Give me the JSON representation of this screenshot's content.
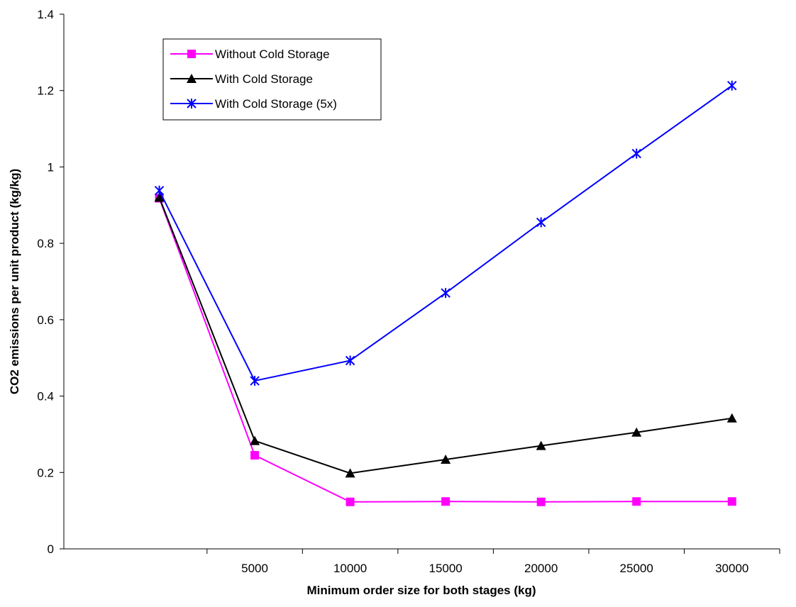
{
  "chart_data": {
    "type": "line",
    "xlabel": "Minimum order size for both stages (kg)",
    "ylabel": "CO2 emissions per unit product (kg/kg)",
    "categories": [
      "",
      "5000",
      "10000",
      "15000",
      "20000",
      "25000",
      "30000"
    ],
    "ylim": [
      0,
      1.4
    ],
    "yticks": [
      "0",
      "0.2",
      "0.4",
      "0.6",
      "0.8",
      "1",
      "1.2",
      "1.4"
    ],
    "grid": false,
    "legend_position": "top-left",
    "series": [
      {
        "name": "Without Cold Storage",
        "color": "#ff00ff",
        "marker": "square",
        "values": [
          0.918,
          0.245,
          0.123,
          0.124,
          0.123,
          0.124,
          0.124
        ]
      },
      {
        "name": "With Cold Storage",
        "color": "#000000",
        "marker": "triangle",
        "values": [
          0.92,
          0.283,
          0.198,
          0.234,
          0.27,
          0.305,
          0.342
        ]
      },
      {
        "name": "With Cold Storage (5x)",
        "color": "#0000ff",
        "marker": "star",
        "values": [
          0.938,
          0.44,
          0.493,
          0.67,
          0.855,
          1.035,
          1.213
        ]
      }
    ]
  }
}
